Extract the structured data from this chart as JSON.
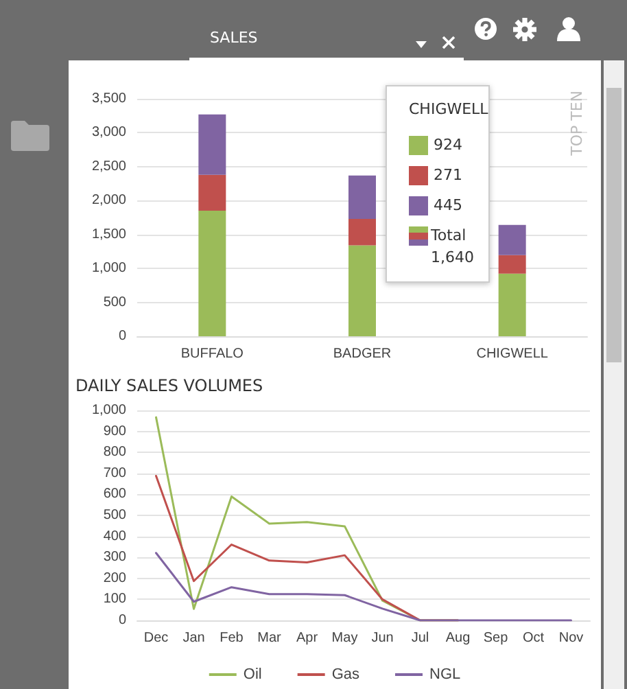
{
  "chart_data": [
    {
      "type": "bar",
      "stacked": true,
      "categories": [
        "BUFFALO",
        "BADGER",
        "CHIGWELL"
      ],
      "series": [
        {
          "color": "#9bbb59",
          "values": [
            1850,
            1340,
            924
          ]
        },
        {
          "color": "#c0504d",
          "values": [
            530,
            390,
            271
          ]
        },
        {
          "color": "#8064a2",
          "values": [
            890,
            640,
            445
          ]
        }
      ],
      "ylim": [
        0,
        3500
      ],
      "yticks": [
        0,
        500,
        {
          "value": 1000,
          "label": "1,000"
        },
        {
          "value": 1500,
          "label": "1,500"
        },
        {
          "value": 2000,
          "label": "2,000"
        },
        {
          "value": 2500,
          "label": "2,500"
        },
        {
          "value": 3000,
          "label": "3,000"
        },
        {
          "value": 3500,
          "label": "3,500"
        }
      ],
      "grid": "y",
      "legend": false,
      "annotations": [
        "SALES",
        "TOP TEN",
        "CHIGWELL",
        "924",
        "271",
        "445",
        "Total",
        "1,640"
      ]
    },
    {
      "type": "line",
      "title": "DAILY SALES VOLUMES",
      "categories": [
        "Dec",
        "Jan",
        "Feb",
        "Mar",
        "Apr",
        "May",
        "Jun",
        "Jul",
        "Aug",
        "Sep",
        "Oct",
        "Nov"
      ],
      "series": [
        {
          "name": "Oil",
          "color": "#9bbb59",
          "values": [
            967,
            55,
            590,
            461,
            468,
            448,
            94,
            0,
            0,
            null,
            null,
            null
          ]
        },
        {
          "name": "Gas",
          "color": "#c0504d",
          "values": [
            688,
            187,
            361,
            285,
            276,
            310,
            100,
            0,
            0,
            null,
            null,
            null
          ]
        },
        {
          "name": "NGL",
          "color": "#8064a2",
          "values": [
            321,
            89,
            158,
            125,
            125,
            120,
            56,
            0,
            0,
            0,
            0,
            0
          ]
        }
      ],
      "ylim": [
        0,
        1000
      ],
      "yticks": [
        0,
        100,
        200,
        300,
        400,
        500,
        600,
        700,
        800,
        900,
        {
          "value": 1000,
          "label": "1,000"
        }
      ],
      "grid": "y",
      "legend": "bottom",
      "marker": "none",
      "line_style": "solid"
    }
  ]
}
